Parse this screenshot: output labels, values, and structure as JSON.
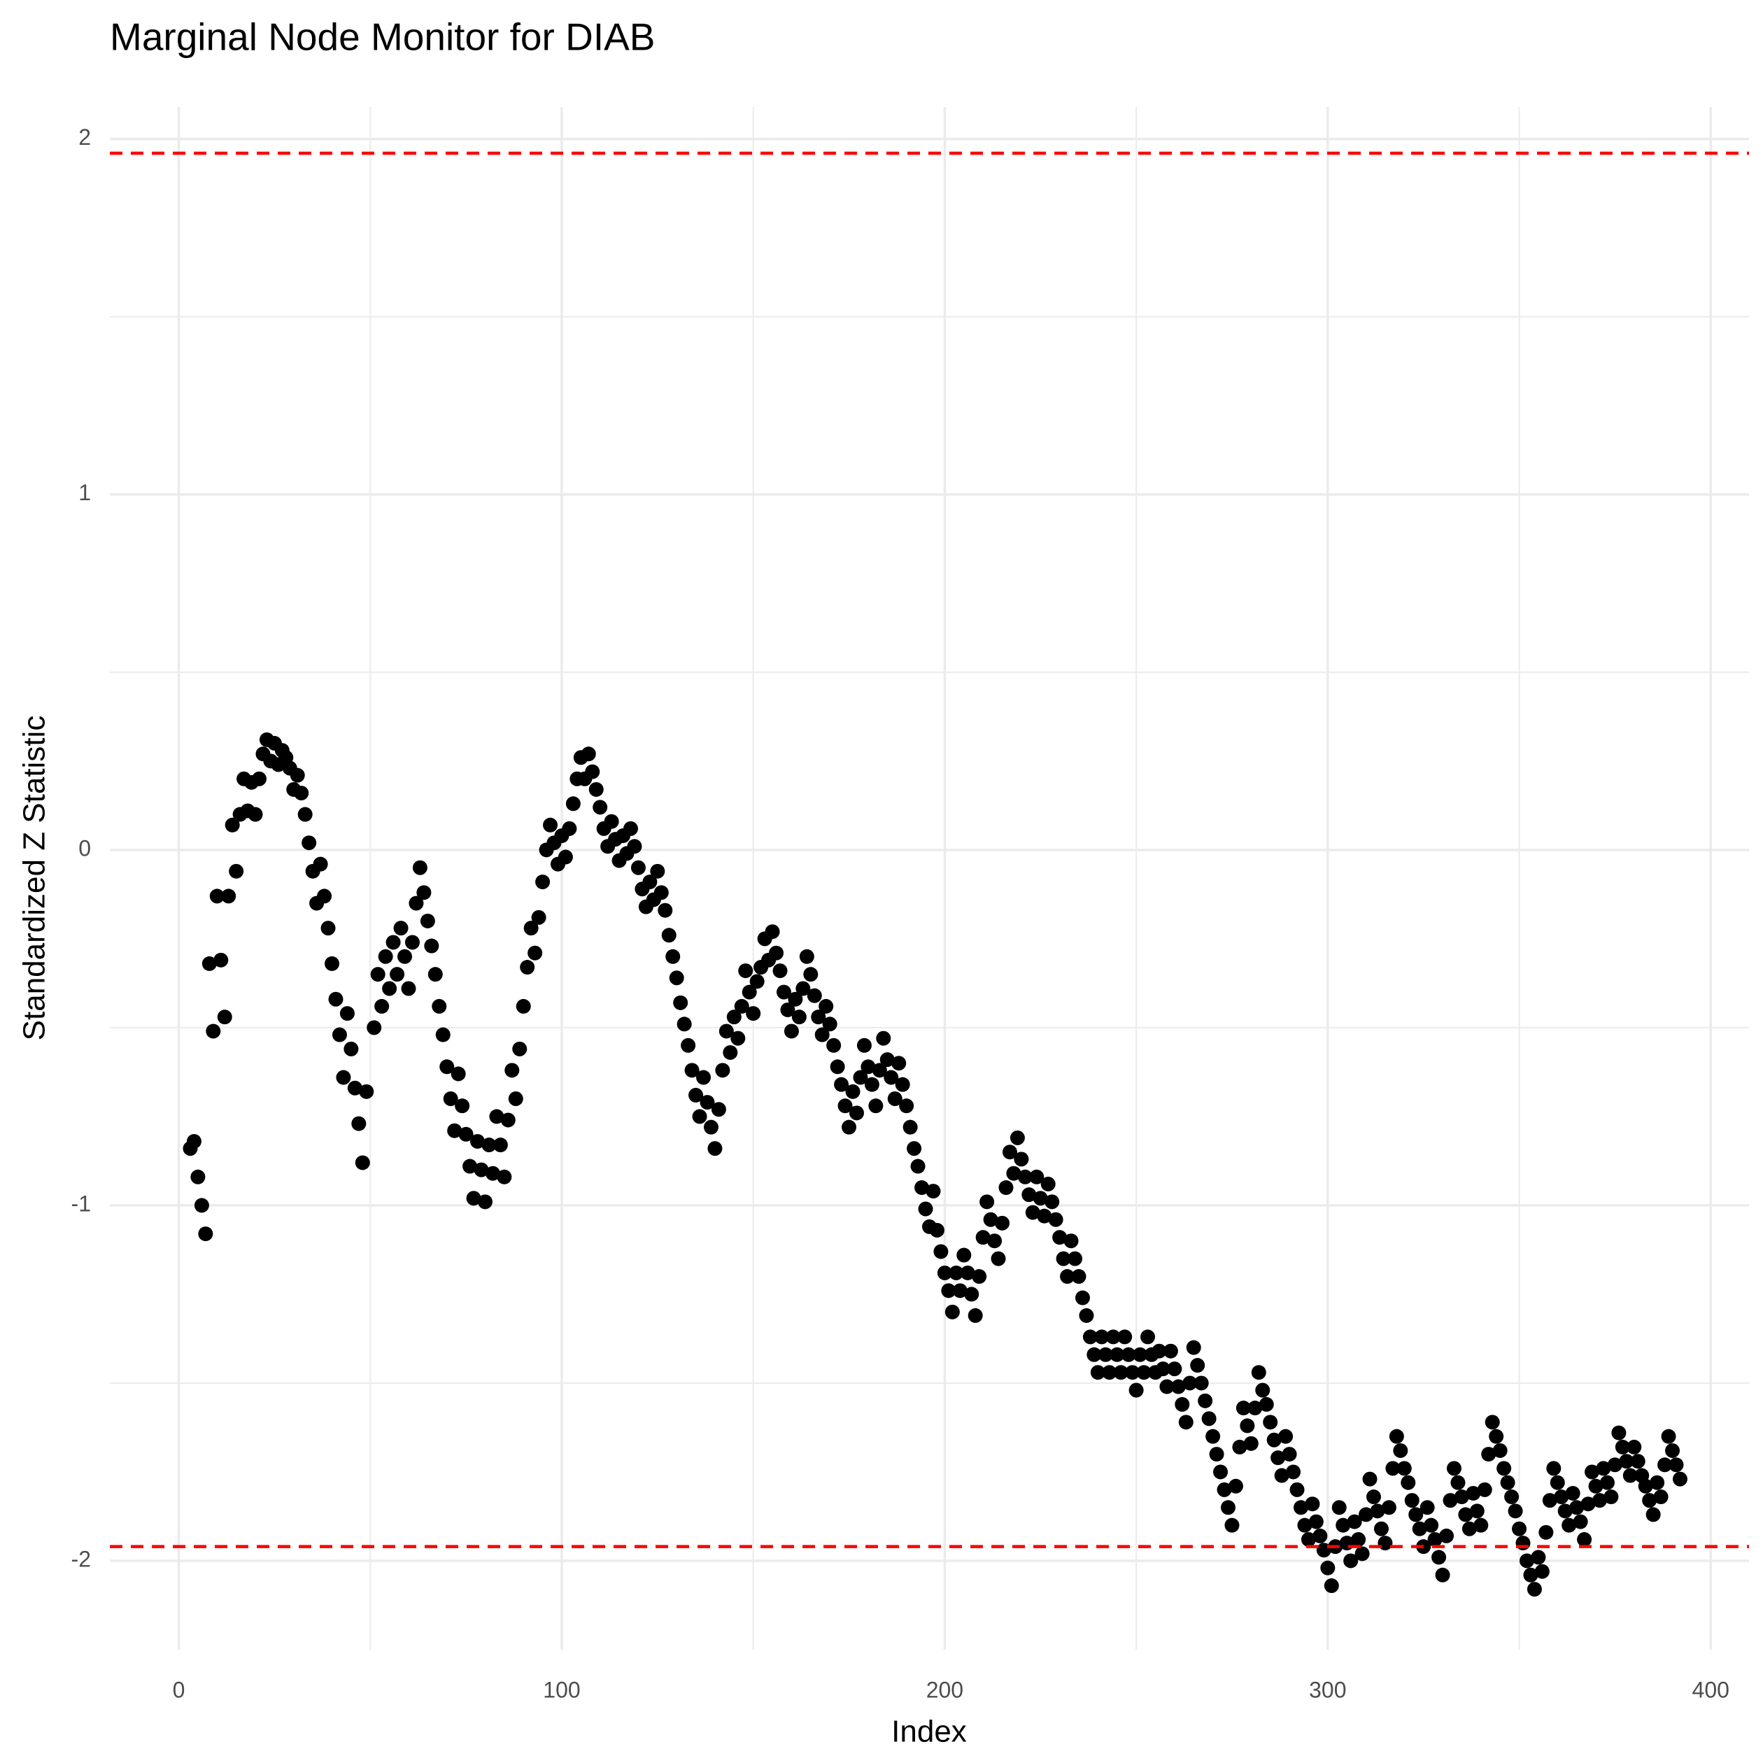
{
  "chart_data": {
    "type": "scatter",
    "title": "Marginal Node Monitor for DIAB",
    "x_label": "Index",
    "y_label": "Standardized Z Statistic",
    "xlim": [
      -18,
      410
    ],
    "ylim": [
      -2.25,
      2.09
    ],
    "xticks": [
      0,
      100,
      200,
      300,
      400
    ],
    "yticks": [
      -2,
      -1,
      0,
      1,
      2
    ],
    "x_minor_ticks": [
      50,
      150,
      250,
      350
    ],
    "y_minor_ticks": [
      -1.5,
      -0.5,
      0.5,
      1.5
    ],
    "grid": true,
    "color": "#000000",
    "hlines": [
      1.96,
      -1.96
    ],
    "hline_color": "#ff0000",
    "x": [
      3,
      4,
      5,
      6,
      7,
      8,
      9,
      10,
      11,
      12,
      13,
      14,
      15,
      16,
      17,
      18,
      19,
      20,
      21,
      22,
      23,
      24,
      25,
      26,
      27,
      28,
      29,
      30,
      31,
      32,
      33,
      34,
      35,
      36,
      37,
      38,
      39,
      40,
      41,
      42,
      43,
      44,
      45,
      46,
      47,
      48,
      49,
      51,
      52,
      53,
      54,
      55,
      56,
      57,
      58,
      59,
      60,
      61,
      62,
      63,
      64,
      65,
      66,
      67,
      68,
      69,
      70,
      71,
      72,
      73,
      74,
      75,
      76,
      77,
      78,
      79,
      80,
      81,
      82,
      83,
      84,
      85,
      86,
      87,
      88,
      89,
      90,
      91,
      92,
      93,
      94,
      95,
      96,
      97,
      98,
      99,
      100,
      101,
      102,
      103,
      104,
      105,
      106,
      107,
      108,
      109,
      110,
      111,
      112,
      113,
      114,
      115,
      116,
      117,
      118,
      119,
      120,
      121,
      122,
      123,
      124,
      125,
      126,
      127,
      128,
      129,
      130,
      131,
      132,
      133,
      134,
      135,
      136,
      137,
      138,
      139,
      140,
      141,
      142,
      143,
      144,
      145,
      146,
      147,
      148,
      149,
      150,
      151,
      152,
      153,
      154,
      155,
      156,
      157,
      158,
      159,
      160,
      161,
      162,
      163,
      164,
      165,
      166,
      167,
      168,
      169,
      170,
      171,
      172,
      173,
      174,
      175,
      176,
      177,
      178,
      179,
      180,
      181,
      182,
      183,
      184,
      185,
      186,
      187,
      188,
      189,
      190,
      191,
      192,
      193,
      194,
      195,
      196,
      197,
      198,
      199,
      200,
      201,
      202,
      203,
      204,
      205,
      206,
      207,
      208,
      209,
      210,
      211,
      212,
      213,
      214,
      215,
      216,
      217,
      218,
      219,
      220,
      221,
      222,
      223,
      224,
      225,
      226,
      227,
      228,
      229,
      230,
      231,
      232,
      233,
      234,
      235,
      236,
      237,
      238,
      239,
      240,
      241,
      242,
      243,
      244,
      245,
      246,
      247,
      248,
      249,
      250,
      251,
      252,
      253,
      254,
      255,
      256,
      257,
      258,
      259,
      260,
      261,
      262,
      263,
      264,
      265,
      266,
      267,
      268,
      269,
      270,
      271,
      272,
      273,
      274,
      275,
      276,
      277,
      278,
      279,
      280,
      281,
      282,
      283,
      284,
      285,
      286,
      287,
      288,
      289,
      290,
      291,
      292,
      293,
      294,
      295,
      296,
      297,
      298,
      299,
      300,
      301,
      302,
      303,
      304,
      305,
      306,
      307,
      308,
      309,
      310,
      311,
      312,
      313,
      314,
      315,
      316,
      317,
      318,
      319,
      320,
      321,
      322,
      323,
      324,
      325,
      326,
      327,
      328,
      329,
      330,
      331,
      332,
      333,
      334,
      335,
      336,
      337,
      338,
      339,
      340,
      341,
      342,
      343,
      344,
      345,
      346,
      347,
      348,
      349,
      350,
      351,
      352,
      353,
      354,
      355,
      356,
      357,
      358,
      359,
      360,
      361,
      362,
      363,
      364,
      365,
      366,
      367,
      368,
      369,
      370,
      371,
      372,
      373,
      374,
      375,
      376,
      377,
      378,
      379,
      380,
      381,
      382,
      383,
      384,
      385,
      386,
      387,
      388,
      389,
      390,
      391,
      392
    ],
    "values": [
      -0.84,
      -0.82,
      -0.92,
      -1.0,
      -1.08,
      -0.32,
      -0.51,
      -0.13,
      -0.31,
      -0.47,
      -0.13,
      0.07,
      -0.06,
      0.1,
      0.2,
      0.11,
      0.19,
      0.1,
      0.2,
      0.27,
      0.31,
      0.25,
      0.3,
      0.24,
      0.28,
      0.26,
      0.23,
      0.17,
      0.21,
      0.16,
      0.1,
      0.02,
      -0.06,
      -0.15,
      -0.04,
      -0.13,
      -0.22,
      -0.32,
      -0.42,
      -0.52,
      -0.64,
      -0.46,
      -0.56,
      -0.67,
      -0.77,
      -0.88,
      -0.68,
      -0.5,
      -0.35,
      -0.44,
      -0.3,
      -0.39,
      -0.26,
      -0.35,
      -0.22,
      -0.3,
      -0.39,
      -0.26,
      -0.15,
      -0.05,
      -0.12,
      -0.2,
      -0.27,
      -0.35,
      -0.44,
      -0.52,
      -0.61,
      -0.7,
      -0.79,
      -0.63,
      -0.72,
      -0.8,
      -0.89,
      -0.98,
      -0.82,
      -0.9,
      -0.99,
      -0.83,
      -0.91,
      -0.75,
      -0.83,
      -0.92,
      -0.76,
      -0.62,
      -0.7,
      -0.56,
      -0.44,
      -0.33,
      -0.22,
      -0.29,
      -0.19,
      -0.09,
      0.0,
      0.07,
      0.02,
      -0.04,
      0.04,
      -0.02,
      0.06,
      0.13,
      0.2,
      0.26,
      0.2,
      0.27,
      0.22,
      0.17,
      0.12,
      0.06,
      0.01,
      0.08,
      0.03,
      -0.03,
      0.04,
      -0.01,
      0.06,
      0.01,
      -0.05,
      -0.11,
      -0.16,
      -0.09,
      -0.14,
      -0.06,
      -0.12,
      -0.17,
      -0.24,
      -0.3,
      -0.36,
      -0.43,
      -0.49,
      -0.55,
      -0.62,
      -0.69,
      -0.75,
      -0.64,
      -0.71,
      -0.78,
      -0.84,
      -0.73,
      -0.62,
      -0.51,
      -0.57,
      -0.47,
      -0.53,
      -0.44,
      -0.34,
      -0.4,
      -0.46,
      -0.37,
      -0.33,
      -0.25,
      -0.31,
      -0.23,
      -0.29,
      -0.34,
      -0.4,
      -0.45,
      -0.51,
      -0.42,
      -0.47,
      -0.39,
      -0.3,
      -0.35,
      -0.41,
      -0.47,
      -0.52,
      -0.44,
      -0.49,
      -0.55,
      -0.61,
      -0.66,
      -0.72,
      -0.78,
      -0.68,
      -0.74,
      -0.64,
      -0.55,
      -0.61,
      -0.66,
      -0.72,
      -0.62,
      -0.53,
      -0.59,
      -0.64,
      -0.7,
      -0.6,
      -0.66,
      -0.72,
      -0.78,
      -0.84,
      -0.89,
      -0.95,
      -1.01,
      -1.06,
      -0.96,
      -1.07,
      -1.13,
      -1.19,
      -1.24,
      -1.3,
      -1.19,
      -1.24,
      -1.14,
      -1.19,
      -1.25,
      -1.31,
      -1.2,
      -1.09,
      -0.99,
      -1.04,
      -1.1,
      -1.15,
      -1.05,
      -0.95,
      -0.85,
      -0.91,
      -0.81,
      -0.87,
      -0.92,
      -0.97,
      -1.02,
      -0.92,
      -0.98,
      -1.03,
      -0.94,
      -0.99,
      -1.04,
      -1.09,
      -1.15,
      -1.2,
      -1.1,
      -1.15,
      -1.2,
      -1.26,
      -1.31,
      -1.37,
      -1.42,
      -1.47,
      -1.37,
      -1.42,
      -1.47,
      -1.37,
      -1.42,
      -1.47,
      -1.37,
      -1.42,
      -1.47,
      -1.52,
      -1.42,
      -1.47,
      -1.37,
      -1.42,
      -1.47,
      -1.41,
      -1.46,
      -1.51,
      -1.41,
      -1.46,
      -1.51,
      -1.56,
      -1.61,
      -1.5,
      -1.4,
      -1.45,
      -1.5,
      -1.55,
      -1.6,
      -1.65,
      -1.7,
      -1.75,
      -1.8,
      -1.85,
      -1.9,
      -1.79,
      -1.68,
      -1.57,
      -1.62,
      -1.67,
      -1.57,
      -1.47,
      -1.52,
      -1.56,
      -1.61,
      -1.66,
      -1.71,
      -1.76,
      -1.65,
      -1.7,
      -1.75,
      -1.8,
      -1.85,
      -1.9,
      -1.94,
      -1.84,
      -1.89,
      -1.93,
      -1.97,
      -2.02,
      -2.07,
      -1.96,
      -1.85,
      -1.9,
      -1.95,
      -2.0,
      -1.89,
      -1.94,
      -1.98,
      -1.87,
      -1.77,
      -1.82,
      -1.86,
      -1.91,
      -1.95,
      -1.85,
      -1.74,
      -1.65,
      -1.69,
      -1.74,
      -1.78,
      -1.83,
      -1.87,
      -1.91,
      -1.96,
      -1.85,
      -1.9,
      -1.94,
      -1.99,
      -2.04,
      -1.93,
      -1.83,
      -1.74,
      -1.78,
      -1.82,
      -1.87,
      -1.91,
      -1.81,
      -1.86,
      -1.9,
      -1.8,
      -1.7,
      -1.61,
      -1.65,
      -1.69,
      -1.74,
      -1.78,
      -1.82,
      -1.86,
      -1.91,
      -1.95,
      -2.0,
      -2.04,
      -2.08,
      -1.99,
      -2.03,
      -1.92,
      -1.83,
      -1.74,
      -1.78,
      -1.82,
      -1.86,
      -1.9,
      -1.81,
      -1.85,
      -1.89,
      -1.94,
      -1.84,
      -1.75,
      -1.79,
      -1.83,
      -1.74,
      -1.78,
      -1.82,
      -1.73,
      -1.64,
      -1.68,
      -1.72,
      -1.76,
      -1.68,
      -1.72,
      -1.76,
      -1.79,
      -1.83,
      -1.87,
      -1.78,
      -1.82,
      -1.73,
      -1.65,
      -1.69,
      -1.73,
      -1.77
    ]
  }
}
